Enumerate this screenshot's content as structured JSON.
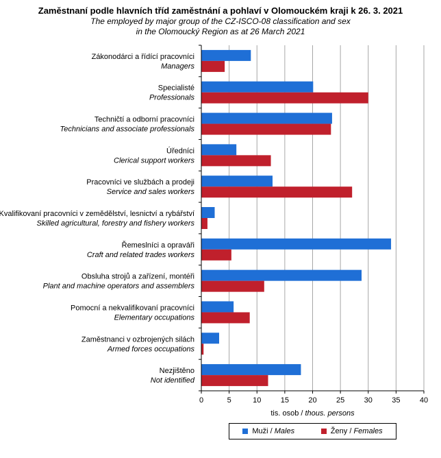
{
  "header": {
    "title": "Zaměstnaní podle hlavních tříd zaměstnání a pohlaví v Olomouckém kraji k 26. 3. 2021",
    "subtitle_line1": "The employed by major group of the CZ-ISCO-08 classification and sex",
    "subtitle_line2": "in the Olomoucký Region as at 26 March 2021"
  },
  "colors": {
    "males": "#1f6fd6",
    "females": "#c0202c",
    "grid": "#a6a6a6"
  },
  "chart_data": {
    "type": "bar",
    "orientation": "horizontal",
    "categories": [
      {
        "cz": "Zákonodárci a řídící pracovníci",
        "en": "Managers"
      },
      {
        "cz": "Specialisté",
        "en": "Professionals"
      },
      {
        "cz": "Techničtí a odborní pracovníci",
        "en": "Technicians and associate professionals"
      },
      {
        "cz": "Úředníci",
        "en": "Clerical support workers"
      },
      {
        "cz": "Pracovníci ve službách a prodeji",
        "en": "Service and sales workers"
      },
      {
        "cz": "Kvalifikovaní pracovníci v zemědělství, lesnictví a rybářství",
        "en": "Skilled agricultural, forestry and fishery workers"
      },
      {
        "cz": "Řemeslníci a opraváři",
        "en": "Craft and related trades workers"
      },
      {
        "cz": "Obsluha strojů a zařízení, montéři",
        "en": "Plant and machine operators and assemblers"
      },
      {
        "cz": "Pomocní a nekvalifikovaní pracovníci",
        "en": "Elementary occupations"
      },
      {
        "cz": "Zaměstnanci v ozbrojených silách",
        "en": "Armed forces occupations"
      },
      {
        "cz": "Nezjištěno",
        "en": "Not identified"
      }
    ],
    "series": [
      {
        "name": "Muži / Males",
        "name_cz": "Muži",
        "name_en": "Males",
        "values": [
          8.9,
          20.1,
          23.5,
          6.3,
          12.8,
          2.4,
          34.1,
          28.8,
          5.8,
          3.2,
          17.9
        ]
      },
      {
        "name": "Ženy / Females",
        "name_cz": "Ženy",
        "name_en": "Females",
        "values": [
          4.2,
          30.0,
          23.3,
          12.5,
          27.1,
          1.1,
          5.4,
          11.3,
          8.7,
          0.4,
          12.0
        ]
      }
    ],
    "xlabel_cz": "tis. osob",
    "xlabel_en": "thous. persons",
    "xlim": [
      0,
      40
    ],
    "xticks": [
      0,
      5,
      10,
      15,
      20,
      25,
      30,
      35,
      40
    ],
    "grid": true,
    "legend_position": "bottom"
  }
}
